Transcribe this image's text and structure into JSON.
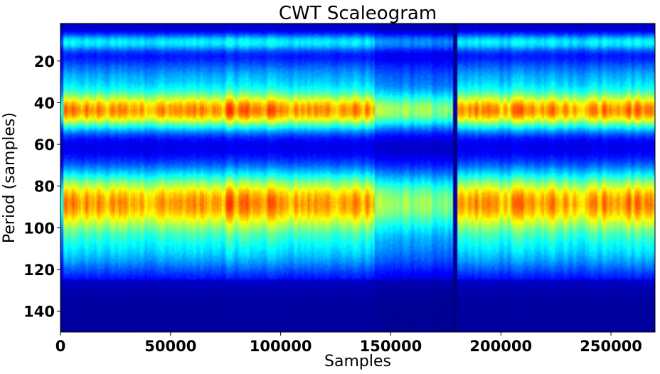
{
  "chart_data": {
    "type": "heatmap",
    "title": "CWT Scaleogram",
    "xlabel": "Samples",
    "ylabel": "Period (samples)",
    "xlim": [
      0,
      270000
    ],
    "ylim": [
      150,
      2
    ],
    "y_inverted": true,
    "grid": false,
    "legend": "none",
    "colormap": "jet",
    "x_ticks": [
      0,
      50000,
      100000,
      150000,
      200000,
      250000
    ],
    "y_ticks": [
      20,
      40,
      60,
      80,
      100,
      120,
      140
    ],
    "power_bands": [
      {
        "period_center": 11,
        "period_width": 3,
        "level": 0.3
      },
      {
        "period_center": 44,
        "period_width": 6.5,
        "level": 0.66
      },
      {
        "period_center": 88,
        "period_width": 11,
        "level": 0.66
      },
      {
        "period_center": 28,
        "period_width": 7,
        "level": 0.22
      },
      {
        "period_center": 112,
        "period_width": 9,
        "level": 0.22
      }
    ],
    "x_modulation": [
      {
        "x_start": 0,
        "x_end": 1000,
        "factor": 0.55
      },
      {
        "x_start": 75000,
        "x_end": 105000,
        "factor": 1.05
      },
      {
        "x_start": 143000,
        "x_end": 178000,
        "factor": 0.72
      },
      {
        "x_start": 178000,
        "x_end": 180000,
        "factor": 0.05
      },
      {
        "x_start": 240000,
        "x_end": 270000,
        "factor": 1.05
      }
    ]
  }
}
